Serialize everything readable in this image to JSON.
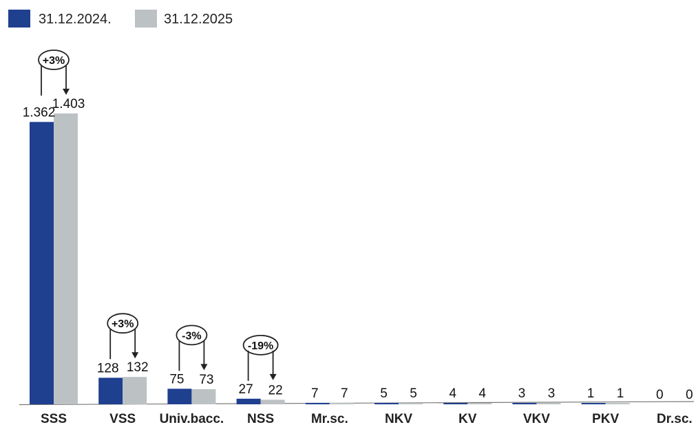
{
  "chart_data": {
    "type": "bar",
    "categories": [
      "SSS",
      "VSS",
      "Univ.bacc.",
      "NSS",
      "Mr.sc.",
      "NKV",
      "KV",
      "VKV",
      "PKV",
      "Dr.sc."
    ],
    "series": [
      {
        "name": "31.12.2024.",
        "color": "#1f3f8f",
        "values": [
          1362,
          128,
          75,
          27,
          7,
          5,
          4,
          3,
          1,
          0
        ],
        "labels": [
          "1.362",
          "128",
          "75",
          "27",
          "7",
          "5",
          "4",
          "3",
          "1",
          "0"
        ]
      },
      {
        "name": "31.12.2025",
        "color": "#bcc2c4",
        "values": [
          1403,
          132,
          73,
          22,
          7,
          5,
          4,
          3,
          1,
          0
        ],
        "labels": [
          "1.403",
          "132",
          "73",
          "22",
          "7",
          "5",
          "4",
          "3",
          "1",
          "0"
        ]
      }
    ],
    "annotations": [
      {
        "category": "SSS",
        "text": "+3%"
      },
      {
        "category": "VSS",
        "text": "+3%"
      },
      {
        "category": "Univ.bacc.",
        "text": "-3%"
      },
      {
        "category": "NSS",
        "text": "-19%"
      }
    ],
    "title": "",
    "xlabel": "",
    "ylabel": "",
    "ylim": [
      0,
      1403
    ],
    "grid": false,
    "legend": "top-left"
  }
}
